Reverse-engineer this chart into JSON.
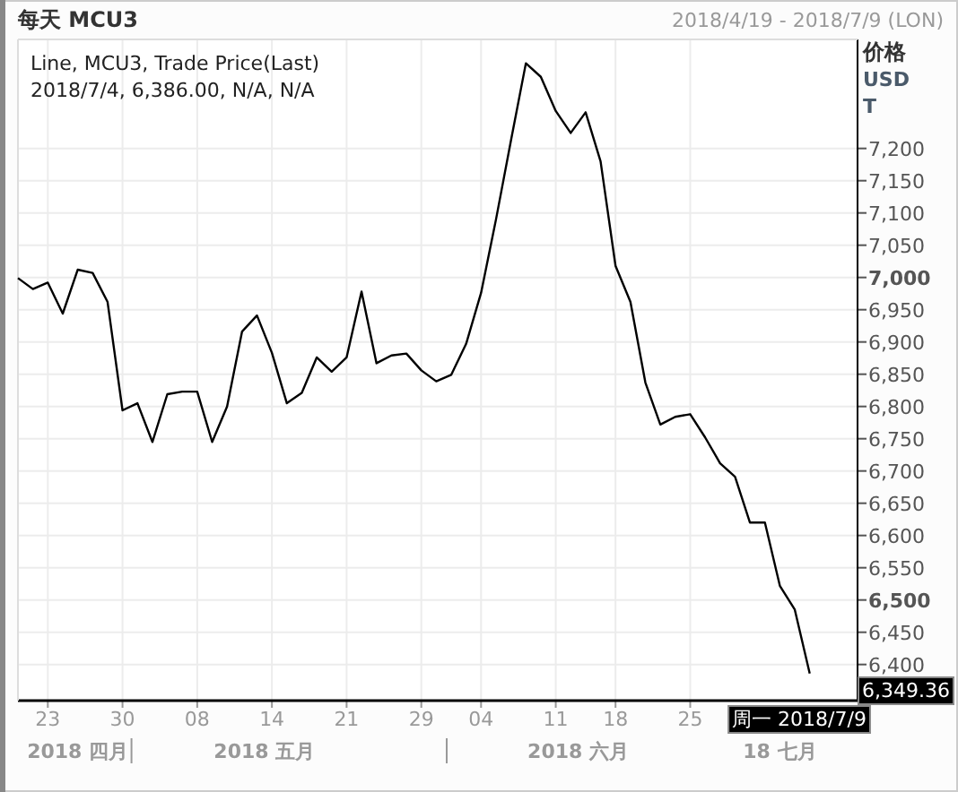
{
  "chart_data": {
    "type": "line",
    "title": "每天 MCU3",
    "subtitle": "2018/4/19 - 2018/7/9 (LON)",
    "ylabel": "价格\nUSD\nT",
    "annotations": [
      "Line, MCU3, Trade Price(Last)",
      "2018/7/4, 6,386.00, N/A, N/A",
      "2018 四月",
      "2018 五月",
      "2018 六月",
      "18 七月",
      "周一 2018/7/9",
      "6,349.36"
    ],
    "categories": [
      null,
      null,
      "23",
      null,
      null,
      null,
      null,
      "30",
      null,
      null,
      null,
      null,
      "08",
      null,
      null,
      null,
      null,
      "14",
      null,
      null,
      null,
      null,
      "21",
      null,
      null,
      null,
      null,
      "29",
      null,
      null,
      null,
      "04",
      null,
      null,
      null,
      null,
      "11",
      null,
      null,
      null,
      "18",
      null,
      null,
      null,
      null,
      "25",
      null,
      null,
      null,
      null,
      null,
      null,
      null,
      null
    ],
    "series": [
      {
        "color": "#000000",
        "values": [
          6999,
          6982,
          6992,
          6944,
          7012,
          7007,
          6962,
          6794,
          6805,
          6745,
          6819,
          6823,
          6823,
          6745,
          6800,
          6916,
          6941,
          6883,
          6805,
          6821,
          6876,
          6854,
          6876,
          6978,
          6867,
          6879,
          6882,
          6856,
          6839,
          6849,
          6897,
          6976,
          7090,
          7212,
          7332,
          7311,
          7258,
          7224,
          7256,
          7180,
          7018,
          6962,
          6837,
          6772,
          6784,
          6788,
          6752,
          6712,
          6691,
          6620,
          6620,
          6522,
          6485,
          6386
        ]
      }
    ],
    "ylim": [
      6344,
      7369
    ],
    "yticks": [
      {
        "value": 6400,
        "label": "6,400"
      },
      {
        "value": 6450,
        "label": "6,450"
      },
      {
        "value": 6500,
        "label": "6,500"
      },
      {
        "value": 6550,
        "label": "6,550"
      },
      {
        "value": 6600,
        "label": "6,600"
      },
      {
        "value": 6650,
        "label": "6,650"
      },
      {
        "value": 6700,
        "label": "6,700"
      },
      {
        "value": 6750,
        "label": "6,750"
      },
      {
        "value": 6800,
        "label": "6,800"
      },
      {
        "value": 6850,
        "label": "6,850"
      },
      {
        "value": 6900,
        "label": "6,900"
      },
      {
        "value": 6950,
        "label": "6,950"
      },
      {
        "value": 7000,
        "label": "7,000"
      },
      {
        "value": 7050,
        "label": "7,050"
      },
      {
        "value": 7100,
        "label": "7,100"
      },
      {
        "value": 7150,
        "label": "7,150"
      },
      {
        "value": 7200,
        "label": "7,200"
      }
    ],
    "grid": true,
    "line_style": "solid"
  }
}
